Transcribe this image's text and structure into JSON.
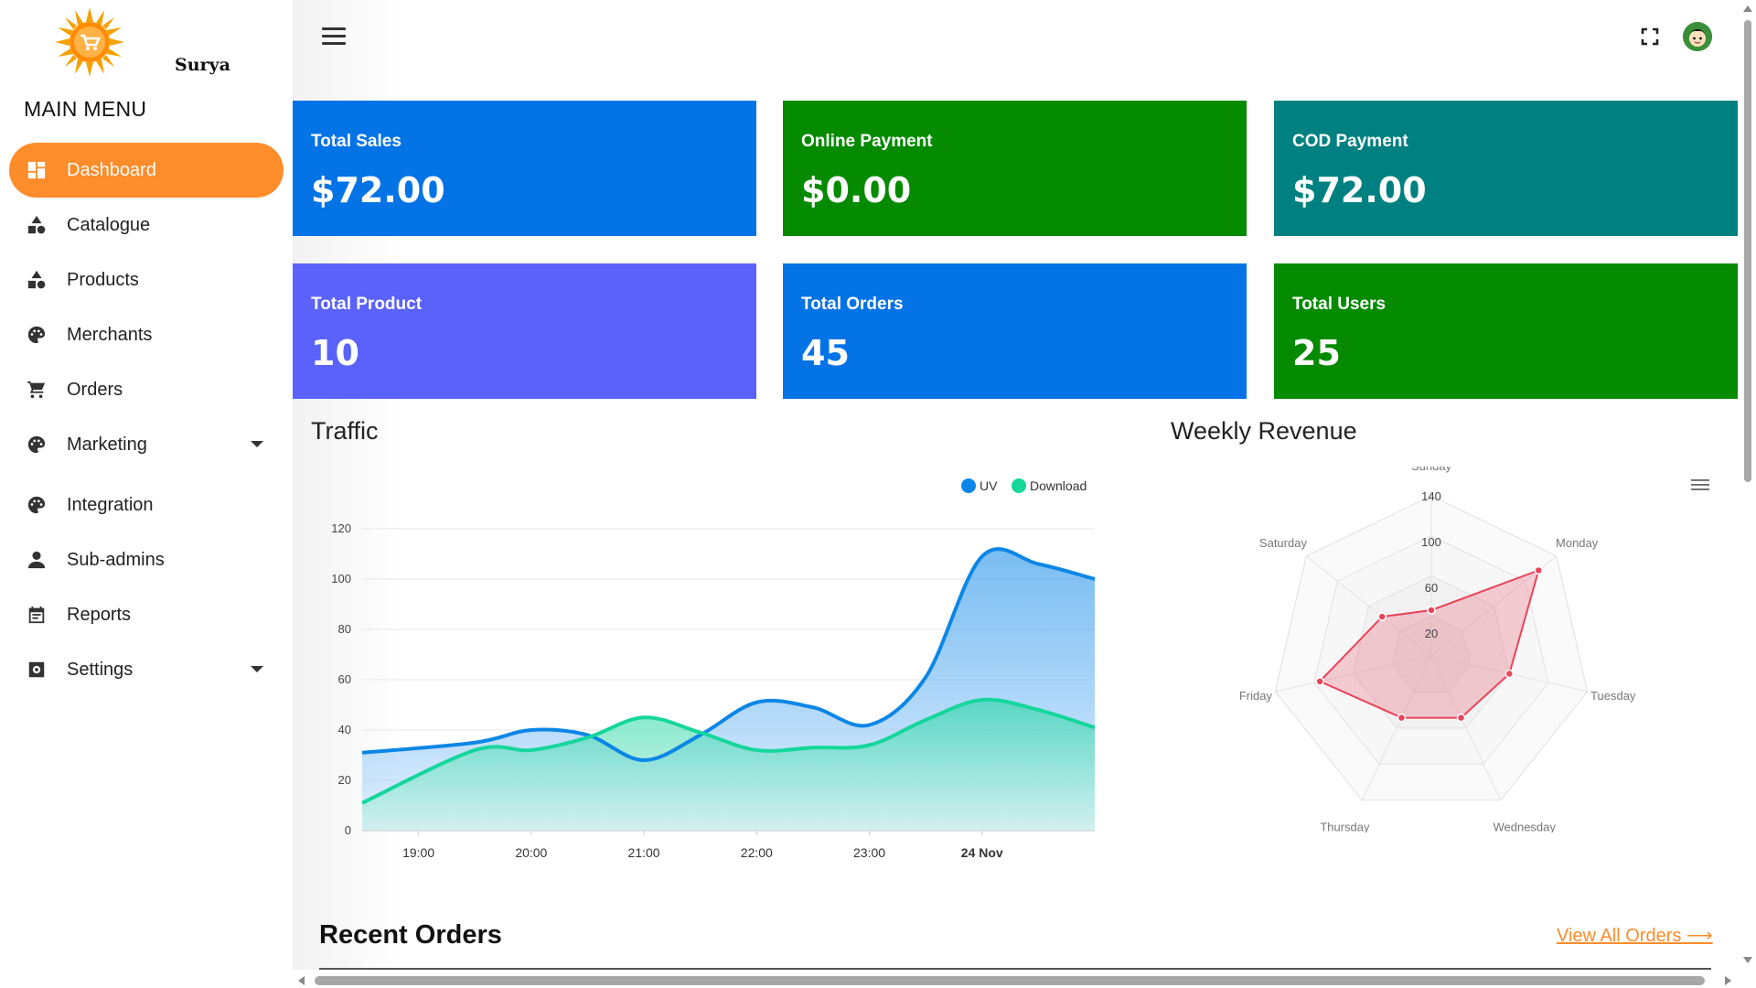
{
  "brand": {
    "name": "Surya"
  },
  "sidebar": {
    "menu_title": "MAIN MENU",
    "items": [
      {
        "label": "Dashboard",
        "icon": "dashboard-icon",
        "active": true,
        "has_caret": false
      },
      {
        "label": "Catalogue",
        "icon": "shapes-icon",
        "active": false,
        "has_caret": false
      },
      {
        "label": "Products",
        "icon": "shapes-icon",
        "active": false,
        "has_caret": false
      },
      {
        "label": "Merchants",
        "icon": "palette-icon",
        "active": false,
        "has_caret": false
      },
      {
        "label": "Orders",
        "icon": "cart-icon",
        "active": false,
        "has_caret": false
      },
      {
        "label": "Marketing",
        "icon": "palette-icon",
        "active": false,
        "has_caret": true
      },
      {
        "label": "Integration",
        "icon": "palette-icon",
        "active": false,
        "has_caret": false
      },
      {
        "label": "Sub-admins",
        "icon": "person-icon",
        "active": false,
        "has_caret": false
      },
      {
        "label": "Reports",
        "icon": "calendar-icon",
        "active": false,
        "has_caret": false
      },
      {
        "label": "Settings",
        "icon": "settings-icon",
        "active": false,
        "has_caret": true
      }
    ]
  },
  "cards": [
    {
      "title": "Total Sales",
      "value": "$72.00",
      "color": "#0473e6"
    },
    {
      "title": "Online Payment",
      "value": "$0.00",
      "color": "#058a00"
    },
    {
      "title": "COD Payment",
      "value": "$72.00",
      "color": "#008080"
    },
    {
      "title": "Total Product",
      "value": "10",
      "color": "#5a62fb"
    },
    {
      "title": "Total Orders",
      "value": "45",
      "color": "#0473e6"
    },
    {
      "title": "Total Users",
      "value": "25",
      "color": "#058a00"
    }
  ],
  "traffic": {
    "title": "Traffic",
    "chart_data": {
      "type": "area",
      "x": [
        "19:00",
        "20:00",
        "21:00",
        "22:00",
        "23:00",
        "24 Nov"
      ],
      "bold_tick": "24 Nov",
      "ylim": [
        0,
        120
      ],
      "yticks": [
        0,
        20,
        40,
        60,
        80,
        100,
        120
      ],
      "legend_position": "top-right",
      "series": [
        {
          "name": "UV",
          "color": "#0b86e6",
          "values": [
            [
              18.5,
              31
            ],
            [
              19.5,
              35
            ],
            [
              20,
              40
            ],
            [
              20.5,
              38
            ],
            [
              21,
              28
            ],
            [
              21.5,
              38
            ],
            [
              22,
              51
            ],
            [
              22.5,
              49
            ],
            [
              23,
              42
            ],
            [
              23.5,
              61
            ],
            [
              24,
              109
            ],
            [
              24.5,
              106
            ],
            [
              25,
              100
            ]
          ]
        },
        {
          "name": "Download",
          "color": "#15d69b",
          "values": [
            [
              18.5,
              11
            ],
            [
              19.5,
              32
            ],
            [
              20,
              32
            ],
            [
              20.5,
              37
            ],
            [
              21,
              45
            ],
            [
              21.5,
              39
            ],
            [
              22,
              32
            ],
            [
              22.5,
              33
            ],
            [
              23,
              34
            ],
            [
              23.5,
              44
            ],
            [
              24,
              52
            ],
            [
              24.5,
              48
            ],
            [
              25,
              41
            ]
          ]
        }
      ]
    }
  },
  "weekly_revenue": {
    "title": "Weekly Revenue",
    "menu_icon": "hamburger-icon",
    "chart_data": {
      "type": "radar",
      "axes": [
        "Sunday",
        "Monday",
        "Tuesday",
        "Wednesday",
        "Thursday",
        "Friday",
        "Saturday"
      ],
      "ticks": [
        20,
        60,
        100,
        140
      ],
      "max": 140,
      "series": [
        {
          "color": "#e8445a",
          "values": [
            40,
            120,
            70,
            60,
            60,
            100,
            55
          ]
        }
      ]
    }
  },
  "recent_orders": {
    "title": "Recent Orders",
    "view_all": "View All Orders ⟶"
  }
}
